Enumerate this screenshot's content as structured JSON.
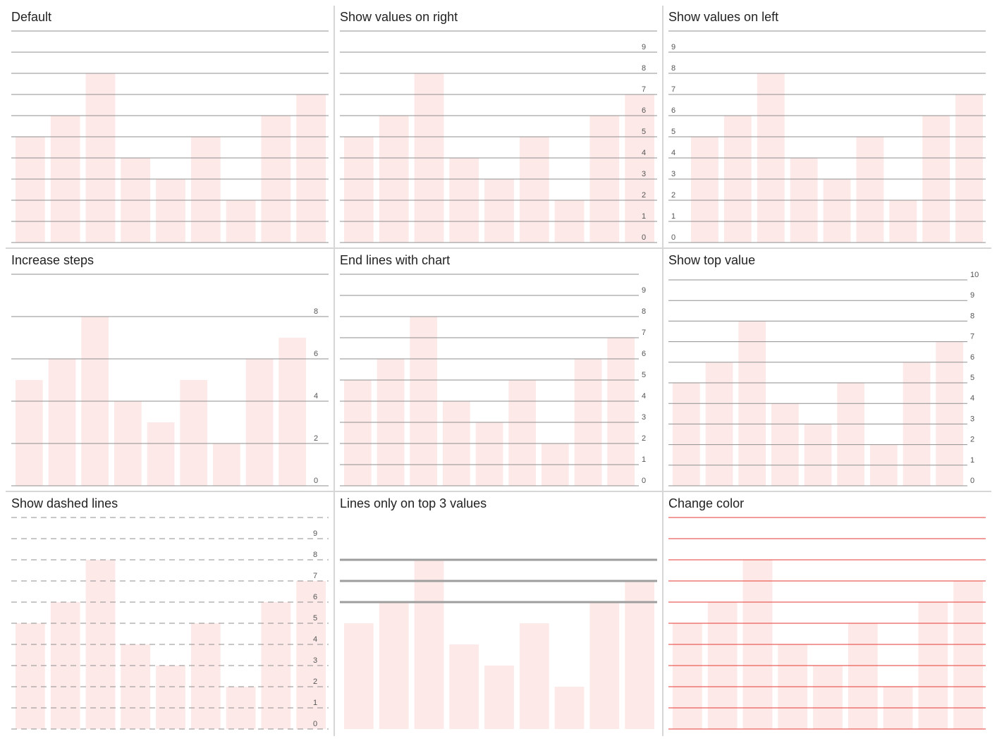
{
  "colors": {
    "bar": "#fdeae8",
    "line": "#8f8f8f",
    "line_custom": "#e53935",
    "tick_text": "#555555",
    "divider": "#d6d6d6"
  },
  "chart_data": [
    {
      "type": "bar",
      "title": "Default",
      "values": [
        5,
        6,
        8,
        4,
        3,
        5,
        2,
        6,
        7
      ],
      "ylim": [
        0,
        10
      ],
      "grid": true,
      "value_labels": "none"
    },
    {
      "type": "bar",
      "title": "Show values on right",
      "values": [
        5,
        6,
        8,
        4,
        3,
        5,
        2,
        6,
        7
      ],
      "ylim": [
        0,
        10
      ],
      "grid": true,
      "value_labels": "right",
      "tick_labels": [
        "0",
        "1",
        "2",
        "3",
        "4",
        "5",
        "6",
        "7",
        "8",
        "9"
      ]
    },
    {
      "type": "bar",
      "title": "Show values on left",
      "values": [
        5,
        6,
        8,
        4,
        3,
        5,
        2,
        6,
        7
      ],
      "ylim": [
        0,
        10
      ],
      "grid": true,
      "value_labels": "left",
      "tick_labels": [
        "0",
        "1",
        "2",
        "3",
        "4",
        "5",
        "6",
        "7",
        "8",
        "9"
      ]
    },
    {
      "type": "bar",
      "title": "Increase steps",
      "values": [
        5,
        6,
        8,
        4,
        3,
        5,
        2,
        6,
        7
      ],
      "ylim": [
        0,
        10
      ],
      "grid": true,
      "grid_step": 2,
      "value_labels": "right",
      "tick_labels": [
        "0",
        "2",
        "4",
        "6",
        "8"
      ]
    },
    {
      "type": "bar",
      "title": "End lines with chart",
      "values": [
        5,
        6,
        8,
        4,
        3,
        5,
        2,
        6,
        7
      ],
      "ylim": [
        0,
        10
      ],
      "grid": true,
      "value_labels": "right",
      "lines_end_with_chart": true,
      "tick_labels": [
        "0",
        "1",
        "2",
        "3",
        "4",
        "5",
        "6",
        "7",
        "8",
        "9"
      ]
    },
    {
      "type": "bar",
      "title": "Show top value",
      "values": [
        5,
        6,
        8,
        4,
        3,
        5,
        2,
        6,
        7
      ],
      "ylim": [
        0,
        10
      ],
      "grid": true,
      "value_labels": "right",
      "show_top_value": true,
      "tick_labels": [
        "0",
        "1",
        "2",
        "3",
        "4",
        "5",
        "6",
        "7",
        "8",
        "9",
        "10"
      ]
    },
    {
      "type": "bar",
      "title": "Show dashed lines",
      "values": [
        5,
        6,
        8,
        4,
        3,
        5,
        2,
        6,
        7
      ],
      "ylim": [
        0,
        10
      ],
      "grid": true,
      "line_style": "dashed",
      "value_labels": "right",
      "tick_labels": [
        "0",
        "1",
        "2",
        "3",
        "4",
        "5",
        "6",
        "7",
        "8",
        "9"
      ]
    },
    {
      "type": "bar",
      "title": "Lines only on top 3 values",
      "values": [
        5,
        6,
        8,
        4,
        3,
        5,
        2,
        6,
        7
      ],
      "ylim": [
        0,
        10
      ],
      "grid": "top-3-values",
      "grid_values": [
        6,
        7,
        8
      ],
      "value_labels": "none"
    },
    {
      "type": "bar",
      "title": "Change color",
      "values": [
        5,
        6,
        8,
        4,
        3,
        5,
        2,
        6,
        7
      ],
      "ylim": [
        0,
        10
      ],
      "grid": true,
      "line_color": "red",
      "value_labels": "none"
    }
  ]
}
